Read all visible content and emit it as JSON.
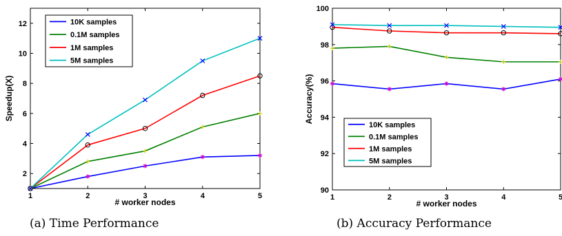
{
  "chart_data": [
    {
      "type": "line",
      "caption": "(a) Time Performance",
      "xlabel": "# worker nodes",
      "ylabel": "Speedup(X)",
      "x": [
        1,
        2,
        3,
        4,
        5
      ],
      "xlim": [
        1,
        5
      ],
      "ylim": [
        1,
        13
      ],
      "xticks": [
        1,
        2,
        3,
        4,
        5
      ],
      "yticks": [
        2,
        4,
        6,
        8,
        10,
        12
      ],
      "grid": false,
      "legend_position": "top-left",
      "series": [
        {
          "name": "10K samples",
          "color": "#0000ff",
          "marker": "asterisk",
          "marker_color": "#cc00cc",
          "values": [
            1,
            1.8,
            2.5,
            3.1,
            3.2
          ]
        },
        {
          "name": "0.1M samples",
          "color": "#008000",
          "marker": "plus",
          "marker_color": "#cccc00",
          "values": [
            1,
            2.8,
            3.5,
            5.1,
            6.0
          ]
        },
        {
          "name": "1M samples",
          "color": "#ff0000",
          "marker": "circle",
          "marker_color": "#000000",
          "values": [
            1,
            3.9,
            5.0,
            7.2,
            8.5
          ]
        },
        {
          "name": "5M samples",
          "color": "#00bfbf",
          "marker": "x",
          "marker_color": "#0000ff",
          "values": [
            1,
            4.6,
            6.9,
            9.5,
            11.0
          ]
        }
      ]
    },
    {
      "type": "line",
      "caption": "(b) Accuracy Performance",
      "xlabel": "# worker nodes",
      "ylabel": "Accuracy(%)",
      "x": [
        1,
        2,
        3,
        4,
        5
      ],
      "xlim": [
        1,
        5
      ],
      "ylim": [
        90,
        100
      ],
      "xticks": [
        1,
        2,
        3,
        4,
        5
      ],
      "yticks": [
        90,
        92,
        94,
        96,
        98,
        100
      ],
      "grid": false,
      "legend_position": "bottom-left",
      "series": [
        {
          "name": "10K samples",
          "color": "#0000ff",
          "marker": "asterisk",
          "marker_color": "#cc00cc",
          "values": [
            95.85,
            95.55,
            95.85,
            95.55,
            96.1
          ]
        },
        {
          "name": "0.1M samples",
          "color": "#008000",
          "marker": "plus",
          "marker_color": "#cccc00",
          "values": [
            97.8,
            97.9,
            97.3,
            97.05,
            97.05
          ]
        },
        {
          "name": "1M samples",
          "color": "#ff0000",
          "marker": "circle",
          "marker_color": "#000000",
          "values": [
            98.95,
            98.75,
            98.65,
            98.65,
            98.6
          ]
        },
        {
          "name": "5M samples",
          "color": "#00bfbf",
          "marker": "x",
          "marker_color": "#0000ff",
          "values": [
            99.1,
            99.05,
            99.05,
            99.0,
            98.95
          ]
        }
      ]
    }
  ]
}
